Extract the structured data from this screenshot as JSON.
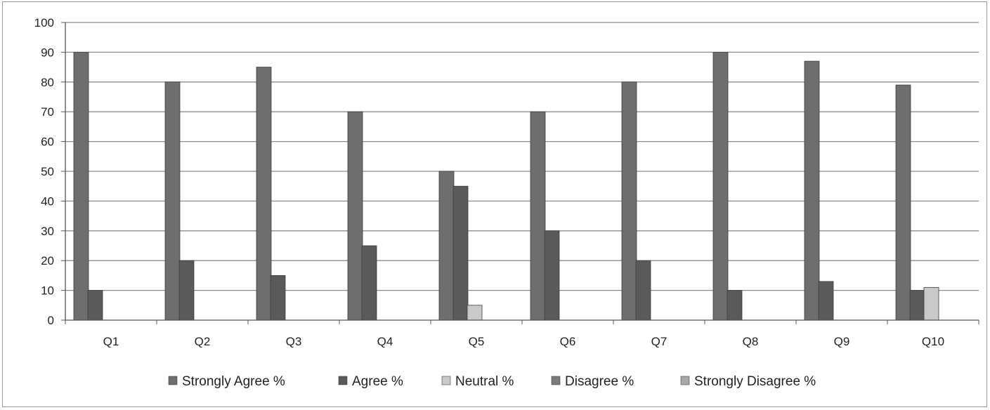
{
  "chart_data": {
    "type": "bar",
    "title": "",
    "xlabel": "",
    "ylabel": "",
    "categories": [
      "Q1",
      "Q2",
      "Q3",
      "Q4",
      "Q5",
      "Q6",
      "Q7",
      "Q8",
      "Q9",
      "Q10"
    ],
    "ylim": [
      0,
      100
    ],
    "yticks": [
      "0",
      "10",
      "20",
      "30",
      "40",
      "50",
      "60",
      "70",
      "80",
      "90",
      "100"
    ],
    "grid": true,
    "legend_position": "bottom",
    "series": [
      {
        "name": "Strongly Agree %",
        "color": "#6e6e6e",
        "values": [
          90,
          80,
          85,
          70,
          50,
          70,
          80,
          90,
          87,
          79
        ]
      },
      {
        "name": "Agree %",
        "color": "#5a5a5a",
        "values": [
          10,
          20,
          15,
          25,
          45,
          30,
          20,
          10,
          13,
          10
        ]
      },
      {
        "name": "Neutral %",
        "color": "#c9c9c9",
        "values": [
          0,
          0,
          0,
          0,
          5,
          0,
          0,
          0,
          0,
          11
        ]
      },
      {
        "name": "Disagree %",
        "color": "#7a7a7a",
        "values": [
          0,
          0,
          0,
          0,
          0,
          0,
          0,
          0,
          0,
          0
        ]
      },
      {
        "name": "Strongly Disagree %",
        "color": "#a8a8a8",
        "values": [
          0,
          0,
          0,
          0,
          0,
          0,
          0,
          0,
          0,
          0
        ]
      }
    ]
  }
}
